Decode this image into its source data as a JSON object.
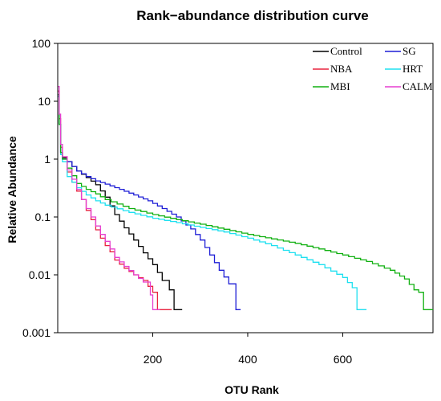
{
  "chart_data": {
    "type": "line",
    "title": "Rank−abundance distribution curve",
    "xlabel": "OTU Rank",
    "ylabel": "Relative Abundance",
    "x_scale": "linear",
    "y_scale": "log",
    "xlim": [
      0,
      790
    ],
    "ylim": [
      0.001,
      100
    ],
    "x_ticks": [
      {
        "value": 200,
        "label": "200"
      },
      {
        "value": 400,
        "label": "400"
      },
      {
        "value": 600,
        "label": "600"
      }
    ],
    "y_ticks": [
      {
        "value": 100,
        "label": "100"
      },
      {
        "value": 10,
        "label": "10"
      },
      {
        "value": 1,
        "label": "1"
      },
      {
        "value": 0.1,
        "label": "0.1"
      },
      {
        "value": 0.01,
        "label": "0.01"
      },
      {
        "value": 0.001,
        "label": "0.001"
      }
    ],
    "grid": false,
    "legend_position": "top-right",
    "series": [
      {
        "name": "Control",
        "color": "#000000",
        "points": [
          [
            1,
            12
          ],
          [
            3,
            4
          ],
          [
            6,
            1.3
          ],
          [
            10,
            1.05
          ],
          [
            20,
            0.9
          ],
          [
            40,
            0.62
          ],
          [
            60,
            0.48
          ],
          [
            80,
            0.36
          ],
          [
            100,
            0.22
          ],
          [
            120,
            0.11
          ],
          [
            140,
            0.065
          ],
          [
            160,
            0.04
          ],
          [
            180,
            0.024
          ],
          [
            200,
            0.015
          ],
          [
            220,
            0.008
          ],
          [
            235,
            0.0055
          ],
          [
            245,
            0.0025
          ],
          [
            262,
            0.0025
          ]
        ]
      },
      {
        "name": "SG",
        "color": "#1f1fd6",
        "points": [
          [
            1,
            13
          ],
          [
            3,
            4
          ],
          [
            6,
            1.3
          ],
          [
            10,
            1.0
          ],
          [
            20,
            0.9
          ],
          [
            40,
            0.62
          ],
          [
            60,
            0.5
          ],
          [
            80,
            0.42
          ],
          [
            100,
            0.37
          ],
          [
            130,
            0.3
          ],
          [
            160,
            0.24
          ],
          [
            190,
            0.19
          ],
          [
            220,
            0.14
          ],
          [
            250,
            0.1
          ],
          [
            280,
            0.062
          ],
          [
            300,
            0.04
          ],
          [
            320,
            0.022
          ],
          [
            340,
            0.012
          ],
          [
            360,
            0.007
          ],
          [
            375,
            0.0025
          ],
          [
            385,
            0.0025
          ]
        ]
      },
      {
        "name": "NBA",
        "color": "#e8233f",
        "points": [
          [
            1,
            15
          ],
          [
            3,
            5
          ],
          [
            6,
            1.6
          ],
          [
            10,
            1.1
          ],
          [
            20,
            0.6
          ],
          [
            30,
            0.4
          ],
          [
            40,
            0.28
          ],
          [
            50,
            0.2
          ],
          [
            60,
            0.13
          ],
          [
            70,
            0.09
          ],
          [
            80,
            0.06
          ],
          [
            90,
            0.043
          ],
          [
            100,
            0.032
          ],
          [
            110,
            0.025
          ],
          [
            120,
            0.018
          ],
          [
            140,
            0.013
          ],
          [
            160,
            0.01
          ],
          [
            180,
            0.008
          ],
          [
            200,
            0.005
          ],
          [
            210,
            0.0025
          ],
          [
            240,
            0.0025
          ]
        ]
      },
      {
        "name": "HRT",
        "color": "#1ee0f0",
        "points": [
          [
            1,
            12
          ],
          [
            3,
            4
          ],
          [
            6,
            1.2
          ],
          [
            10,
            0.9
          ],
          [
            20,
            0.5
          ],
          [
            40,
            0.32
          ],
          [
            60,
            0.24
          ],
          [
            80,
            0.19
          ],
          [
            100,
            0.16
          ],
          [
            150,
            0.12
          ],
          [
            200,
            0.095
          ],
          [
            250,
            0.08
          ],
          [
            300,
            0.066
          ],
          [
            350,
            0.055
          ],
          [
            400,
            0.043
          ],
          [
            450,
            0.032
          ],
          [
            500,
            0.022
          ],
          [
            550,
            0.015
          ],
          [
            600,
            0.009
          ],
          [
            620,
            0.006
          ],
          [
            630,
            0.0025
          ],
          [
            650,
            0.0025
          ]
        ]
      },
      {
        "name": "MBI",
        "color": "#11b011",
        "points": [
          [
            1,
            13
          ],
          [
            3,
            4
          ],
          [
            6,
            1.3
          ],
          [
            10,
            1.0
          ],
          [
            20,
            0.7
          ],
          [
            40,
            0.38
          ],
          [
            60,
            0.3
          ],
          [
            80,
            0.25
          ],
          [
            100,
            0.2
          ],
          [
            150,
            0.14
          ],
          [
            200,
            0.11
          ],
          [
            250,
            0.09
          ],
          [
            300,
            0.075
          ],
          [
            400,
            0.05
          ],
          [
            500,
            0.035
          ],
          [
            550,
            0.028
          ],
          [
            600,
            0.022
          ],
          [
            650,
            0.017
          ],
          [
            700,
            0.012
          ],
          [
            730,
            0.0085
          ],
          [
            750,
            0.0055
          ],
          [
            760,
            0.005
          ],
          [
            770,
            0.0025
          ],
          [
            790,
            0.0025
          ]
        ]
      },
      {
        "name": "CALM",
        "color": "#e63fd0",
        "points": [
          [
            1,
            18
          ],
          [
            3,
            6
          ],
          [
            6,
            1.8
          ],
          [
            10,
            1.1
          ],
          [
            20,
            0.65
          ],
          [
            30,
            0.45
          ],
          [
            40,
            0.3
          ],
          [
            50,
            0.2
          ],
          [
            60,
            0.14
          ],
          [
            70,
            0.1
          ],
          [
            80,
            0.07
          ],
          [
            90,
            0.05
          ],
          [
            100,
            0.038
          ],
          [
            110,
            0.028
          ],
          [
            120,
            0.02
          ],
          [
            140,
            0.014
          ],
          [
            160,
            0.01
          ],
          [
            180,
            0.0075
          ],
          [
            195,
            0.0045
          ],
          [
            200,
            0.0025
          ],
          [
            215,
            0.0025
          ]
        ]
      }
    ],
    "legend_layout": [
      [
        "Control",
        "SG"
      ],
      [
        "NBA",
        "HRT"
      ],
      [
        "MBI",
        "CALM"
      ]
    ]
  }
}
